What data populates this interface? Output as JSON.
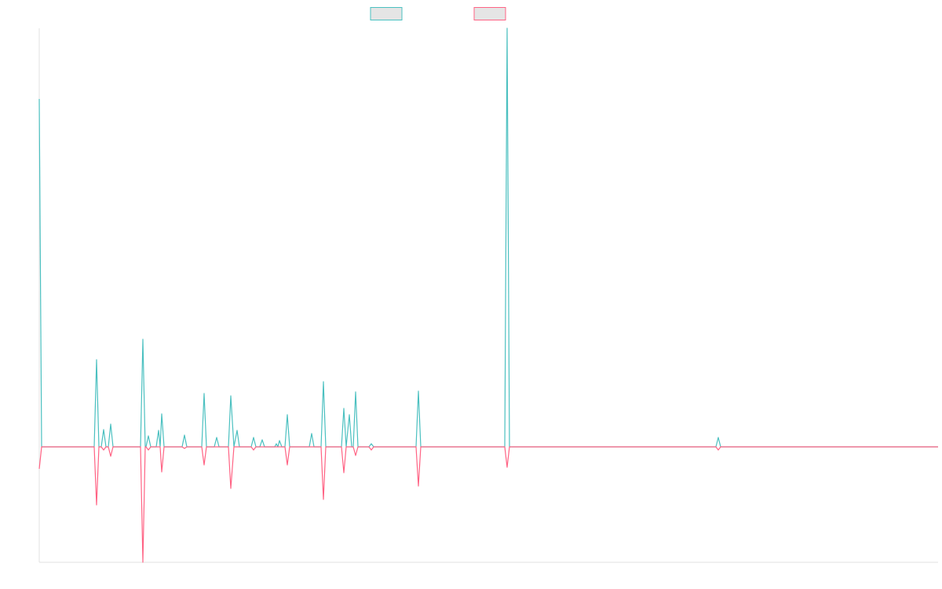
{
  "chart_data": {
    "type": "line",
    "x": [
      0,
      3,
      70,
      73,
      76,
      79,
      82,
      85,
      88,
      91,
      94,
      129,
      132,
      135,
      136,
      139,
      142,
      149,
      152,
      154,
      156,
      159,
      182,
      185,
      188,
      207,
      210,
      213,
      223,
      226,
      229,
      241,
      244,
      248,
      252,
      255,
      270,
      273,
      276,
      281,
      284,
      287,
      300,
      302,
      304,
      306,
      309,
      313,
      316,
      319,
      344,
      347,
      350,
      359,
      362,
      365,
      385,
      388,
      391,
      395,
      398,
      400,
      403,
      406,
      420,
      423,
      426,
      480,
      483,
      486,
      593,
      596,
      599,
      862,
      865,
      868,
      1145
    ],
    "xlim": [
      0,
      1145
    ],
    "ylim": [
      -147,
      533
    ],
    "series": [
      {
        "color": "#4bc0c0",
        "values": [
          443,
          0,
          0,
          111,
          0,
          0,
          22,
          0,
          0,
          29,
          0,
          0,
          137,
          0,
          0,
          14,
          0,
          0,
          21,
          0,
          42,
          0,
          0,
          15,
          0,
          0,
          68,
          0,
          0,
          12,
          0,
          0,
          65,
          0,
          21,
          0,
          0,
          12,
          0,
          0,
          9,
          0,
          0,
          4,
          0,
          8,
          0,
          0,
          41,
          0,
          0,
          17,
          0,
          0,
          83,
          0,
          0,
          49,
          0,
          41,
          0,
          0,
          70,
          0,
          0,
          4,
          0,
          0,
          71,
          0,
          0,
          533,
          0,
          0,
          12,
          0,
          0
        ]
      },
      {
        "color": "#ff6384",
        "values": [
          -28,
          0,
          0,
          -74,
          0,
          0,
          -4,
          0,
          0,
          -12,
          0,
          0,
          -147,
          0,
          0,
          -4,
          0,
          0,
          0,
          0,
          -32,
          0,
          0,
          -2,
          0,
          0,
          -23,
          0,
          0,
          0,
          0,
          0,
          -53,
          0,
          0,
          0,
          0,
          -4,
          0,
          0,
          0,
          0,
          0,
          0,
          0,
          0,
          0,
          0,
          -23,
          0,
          0,
          0,
          0,
          0,
          -67,
          0,
          0,
          -33,
          0,
          0,
          0,
          0,
          -11,
          0,
          0,
          -4,
          0,
          0,
          -50,
          0,
          0,
          -26,
          0,
          0,
          -4,
          0,
          0
        ]
      }
    ],
    "legend": "top"
  }
}
